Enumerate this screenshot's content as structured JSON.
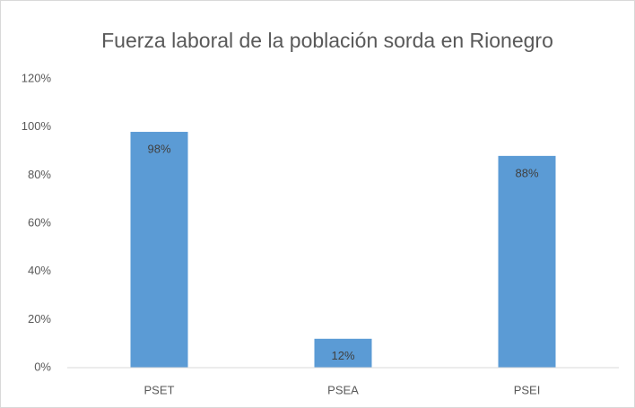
{
  "chart_data": {
    "type": "bar",
    "title": "Fuerza laboral de la población sorda en Rionegro",
    "categories": [
      "PSET",
      "PSEA",
      "PSEI"
    ],
    "values": [
      98,
      12,
      88
    ],
    "value_labels": [
      "98%",
      "12%",
      "88%"
    ],
    "color": "#5b9bd5",
    "ylim": [
      0,
      120
    ],
    "yticks": [
      {
        "value": 0,
        "label": "0%"
      },
      {
        "value": 20,
        "label": "20%"
      },
      {
        "value": 40,
        "label": "40%"
      },
      {
        "value": 60,
        "label": "60%"
      },
      {
        "value": 80,
        "label": "80%"
      },
      {
        "value": 100,
        "label": "100%"
      },
      {
        "value": 120,
        "label": "120%"
      }
    ],
    "grid": false
  }
}
